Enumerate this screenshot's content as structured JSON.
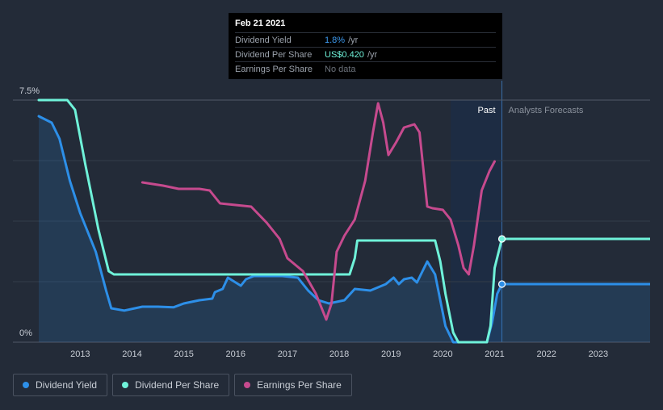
{
  "tooltip": {
    "date": "Feb 21 2021",
    "rows": [
      {
        "label": "Dividend Yield",
        "value": "1.8%",
        "unit": "/yr"
      },
      {
        "label": "Dividend Per Share",
        "value": "US$0.420",
        "unit": "/yr"
      },
      {
        "label": "Earnings Per Share",
        "value": "No data"
      }
    ]
  },
  "legend": {
    "items": [
      {
        "label": "Dividend Yield",
        "color": "#2d8fe8"
      },
      {
        "label": "Dividend Per Share",
        "color": "#6ff2d9"
      },
      {
        "label": "Earnings Per Share",
        "color": "#c64a8e"
      }
    ]
  },
  "chart_data": {
    "type": "line",
    "y_axis": {
      "top_label": "7.5%",
      "bottom_label": "0%",
      "ylim": [
        0,
        7.5
      ]
    },
    "x_axis": {
      "ticks": [
        "2013",
        "2014",
        "2015",
        "2016",
        "2017",
        "2018",
        "2019",
        "2020",
        "2021",
        "2022",
        "2023"
      ],
      "xlim": [
        2012.2,
        2024.0
      ]
    },
    "regions": {
      "past_label": "Past",
      "forecast_label": "Analysts Forecasts",
      "past_start": 2020.15,
      "divider": 2021.14
    },
    "grid": true,
    "series": [
      {
        "name": "Dividend Yield",
        "color": "#2d8fe8",
        "area": true,
        "end_marker": [
          2021.14,
          1.8
        ],
        "forecast": [
          [
            2021.14,
            1.8
          ],
          [
            2024.0,
            1.8
          ]
        ],
        "points": [
          [
            2012.2,
            7.0
          ],
          [
            2012.45,
            6.8
          ],
          [
            2012.6,
            6.3
          ],
          [
            2012.8,
            5.0
          ],
          [
            2013.0,
            4.0
          ],
          [
            2013.3,
            2.8
          ],
          [
            2013.5,
            1.6
          ],
          [
            2013.6,
            1.05
          ],
          [
            2013.85,
            0.98
          ],
          [
            2014.2,
            1.1
          ],
          [
            2014.5,
            1.1
          ],
          [
            2014.8,
            1.08
          ],
          [
            2015.0,
            1.2
          ],
          [
            2015.3,
            1.3
          ],
          [
            2015.55,
            1.35
          ],
          [
            2015.6,
            1.55
          ],
          [
            2015.75,
            1.65
          ],
          [
            2015.85,
            2.0
          ],
          [
            2016.0,
            1.85
          ],
          [
            2016.1,
            1.75
          ],
          [
            2016.2,
            1.95
          ],
          [
            2016.35,
            2.05
          ],
          [
            2016.6,
            2.05
          ],
          [
            2016.9,
            2.05
          ],
          [
            2017.2,
            2.0
          ],
          [
            2017.4,
            1.6
          ],
          [
            2017.6,
            1.3
          ],
          [
            2017.8,
            1.2
          ],
          [
            2018.1,
            1.3
          ],
          [
            2018.3,
            1.65
          ],
          [
            2018.6,
            1.6
          ],
          [
            2018.9,
            1.8
          ],
          [
            2019.05,
            2.0
          ],
          [
            2019.15,
            1.8
          ],
          [
            2019.25,
            1.95
          ],
          [
            2019.4,
            2.0
          ],
          [
            2019.5,
            1.85
          ],
          [
            2019.7,
            2.5
          ],
          [
            2019.85,
            2.1
          ],
          [
            2019.95,
            1.3
          ],
          [
            2020.05,
            0.5
          ],
          [
            2020.2,
            0.0
          ],
          [
            2020.6,
            0.0
          ],
          [
            2020.85,
            0.0
          ],
          [
            2020.95,
            0.6
          ],
          [
            2021.05,
            1.5
          ],
          [
            2021.14,
            1.8
          ]
        ]
      },
      {
        "name": "Dividend Per Share",
        "color": "#6ff2d9",
        "end_marker": [
          2021.14,
          3.2
        ],
        "forecast": [
          [
            2021.14,
            3.2
          ],
          [
            2024.0,
            3.2
          ]
        ],
        "points": [
          [
            2012.2,
            7.5
          ],
          [
            2012.75,
            7.5
          ],
          [
            2012.9,
            7.2
          ],
          [
            2013.1,
            5.5
          ],
          [
            2013.35,
            3.5
          ],
          [
            2013.55,
            2.2
          ],
          [
            2013.65,
            2.1
          ],
          [
            2018.2,
            2.1
          ],
          [
            2018.3,
            2.6
          ],
          [
            2018.35,
            3.15
          ],
          [
            2019.85,
            3.15
          ],
          [
            2019.95,
            2.5
          ],
          [
            2020.05,
            1.5
          ],
          [
            2020.2,
            0.3
          ],
          [
            2020.3,
            0.0
          ],
          [
            2020.85,
            0.0
          ],
          [
            2020.92,
            0.5
          ],
          [
            2021.0,
            2.3
          ],
          [
            2021.14,
            3.2
          ]
        ]
      },
      {
        "name": "Earnings Per Share",
        "color": "#c64a8e",
        "points": [
          [
            2014.2,
            4.95
          ],
          [
            2014.6,
            4.85
          ],
          [
            2014.9,
            4.75
          ],
          [
            2015.3,
            4.75
          ],
          [
            2015.5,
            4.7
          ],
          [
            2015.7,
            4.3
          ],
          [
            2016.0,
            4.25
          ],
          [
            2016.3,
            4.2
          ],
          [
            2016.6,
            3.7
          ],
          [
            2016.85,
            3.2
          ],
          [
            2017.0,
            2.6
          ],
          [
            2017.3,
            2.2
          ],
          [
            2017.55,
            1.5
          ],
          [
            2017.75,
            0.7
          ],
          [
            2017.85,
            1.2
          ],
          [
            2017.95,
            2.8
          ],
          [
            2018.1,
            3.3
          ],
          [
            2018.3,
            3.8
          ],
          [
            2018.5,
            5.0
          ],
          [
            2018.65,
            6.5
          ],
          [
            2018.75,
            7.4
          ],
          [
            2018.85,
            6.8
          ],
          [
            2018.95,
            5.8
          ],
          [
            2019.1,
            6.2
          ],
          [
            2019.25,
            6.65
          ],
          [
            2019.45,
            6.75
          ],
          [
            2019.55,
            6.5
          ],
          [
            2019.7,
            4.2
          ],
          [
            2019.8,
            4.15
          ],
          [
            2020.0,
            4.1
          ],
          [
            2020.15,
            3.8
          ],
          [
            2020.3,
            3.0
          ],
          [
            2020.4,
            2.3
          ],
          [
            2020.5,
            2.1
          ],
          [
            2020.6,
            3.0
          ],
          [
            2020.75,
            4.7
          ],
          [
            2020.9,
            5.3
          ],
          [
            2021.0,
            5.6
          ]
        ]
      }
    ]
  }
}
